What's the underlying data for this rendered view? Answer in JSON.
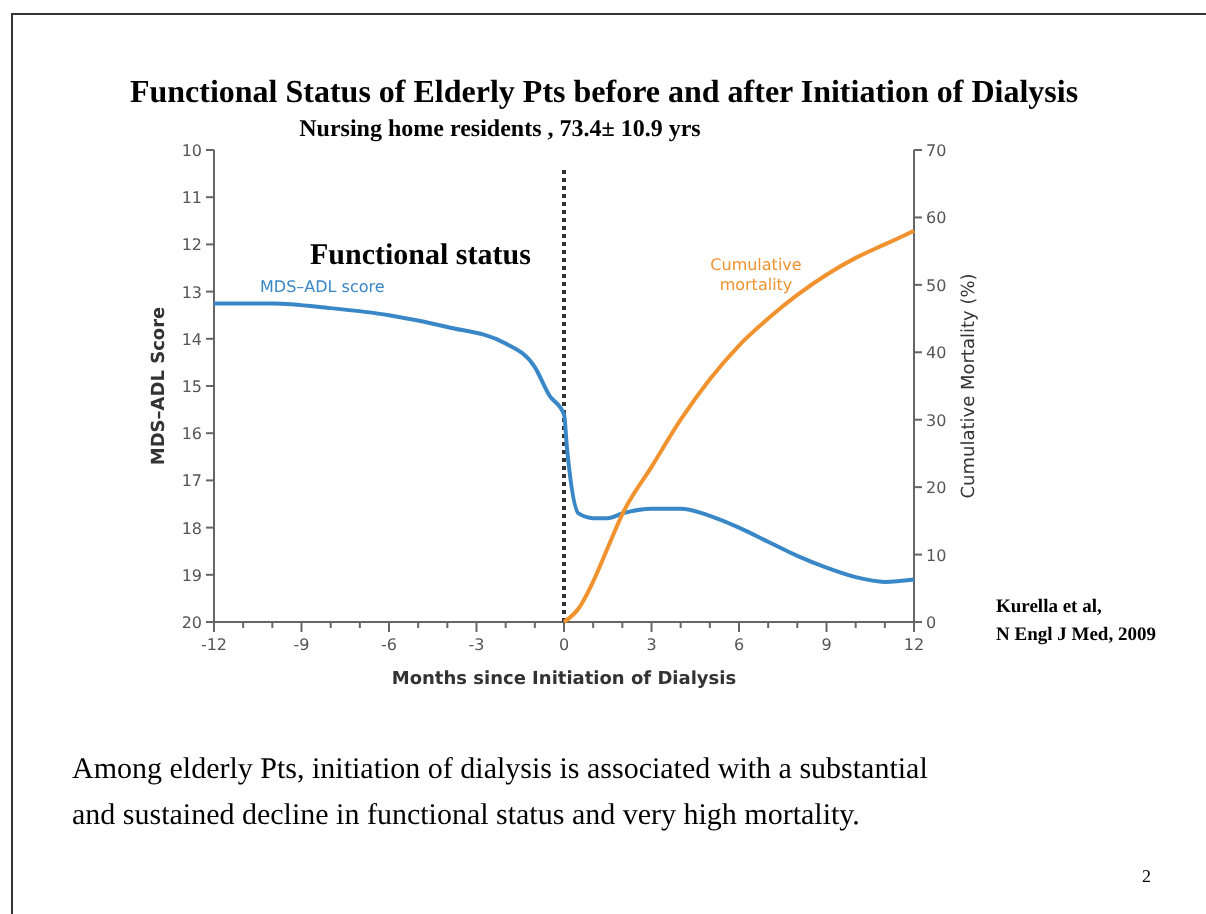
{
  "chart_data": {
    "type": "line",
    "title": "Functional Status of Elderly Pts before and after Initiation of Dialysis",
    "subtitle": "Nursing home residents , 73.4± 10.9 yrs",
    "xlabel": "Months since Initiation of Dialysis",
    "ylabel": "MDS–ADL Score",
    "y2label": "Cumulative Mortality (%)",
    "xlim": [
      -12,
      12
    ],
    "xticks": [
      -12,
      {
        "value": -11,
        "label": null
      },
      {
        "value": -10,
        "label": null
      },
      -9,
      {
        "value": -8,
        "label": null
      },
      {
        "value": -7,
        "label": null
      },
      -6,
      {
        "value": -5,
        "label": null
      },
      {
        "value": -4,
        "label": null
      },
      -3,
      {
        "value": -2,
        "label": null
      },
      {
        "value": -1,
        "label": null
      },
      0,
      {
        "value": 1,
        "label": null
      },
      {
        "value": 2,
        "label": null
      },
      3,
      {
        "value": 4,
        "label": null
      },
      {
        "value": 5,
        "label": null
      },
      6,
      {
        "value": 7,
        "label": null
      },
      {
        "value": 8,
        "label": null
      },
      9,
      {
        "value": 10,
        "label": null
      },
      {
        "value": 11,
        "label": null
      },
      12
    ],
    "ylim": [
      20,
      10
    ],
    "yticks": [
      10,
      11,
      12,
      13,
      14,
      15,
      16,
      17,
      18,
      19,
      20
    ],
    "y2lim": [
      0,
      70
    ],
    "y2ticks": [
      0,
      10,
      20,
      30,
      40,
      50,
      60,
      70
    ],
    "series": [
      {
        "name": "MDS–ADL score",
        "color": "#3a87c8",
        "x": [
          -12,
          -10,
          -8,
          -6,
          -4,
          -2,
          -1,
          -0.5,
          0,
          0.1,
          0.5,
          1,
          1.5,
          2,
          3,
          4,
          5,
          6,
          7,
          8,
          9,
          10,
          11,
          12
        ],
        "values": [
          13.25,
          13.25,
          13.35,
          13.5,
          13.75,
          14.1,
          14.6,
          15.2,
          15.6,
          16.3,
          17.7,
          17.8,
          17.8,
          17.7,
          17.6,
          17.6,
          17.75,
          18.0,
          18.3,
          18.6,
          18.85,
          19.05,
          19.15,
          19.1
        ]
      },
      {
        "name": "Cumulative mortality",
        "color": "#f0922e",
        "axis": "y2",
        "x": [
          0,
          0.5,
          1,
          1.5,
          2,
          3,
          4,
          5,
          6,
          7,
          8,
          9,
          10,
          11,
          12
        ],
        "values": [
          0,
          2,
          6,
          11,
          16,
          23,
          30,
          36,
          41,
          45,
          48.5,
          51.5,
          54,
          56,
          58
        ]
      }
    ],
    "ref_lines": [
      {
        "axis": "x",
        "value": 0,
        "color": "#333333",
        "line_style": "dotted"
      }
    ],
    "annotations": [
      "Functional status",
      "Kurella et al,",
      "N Engl J Med, 2009",
      "Among elderly Pts, initiation of dialysis is associated with a substantial",
      "and sustained decline in functional status and very high mortality.",
      "2"
    ],
    "grid": false
  }
}
